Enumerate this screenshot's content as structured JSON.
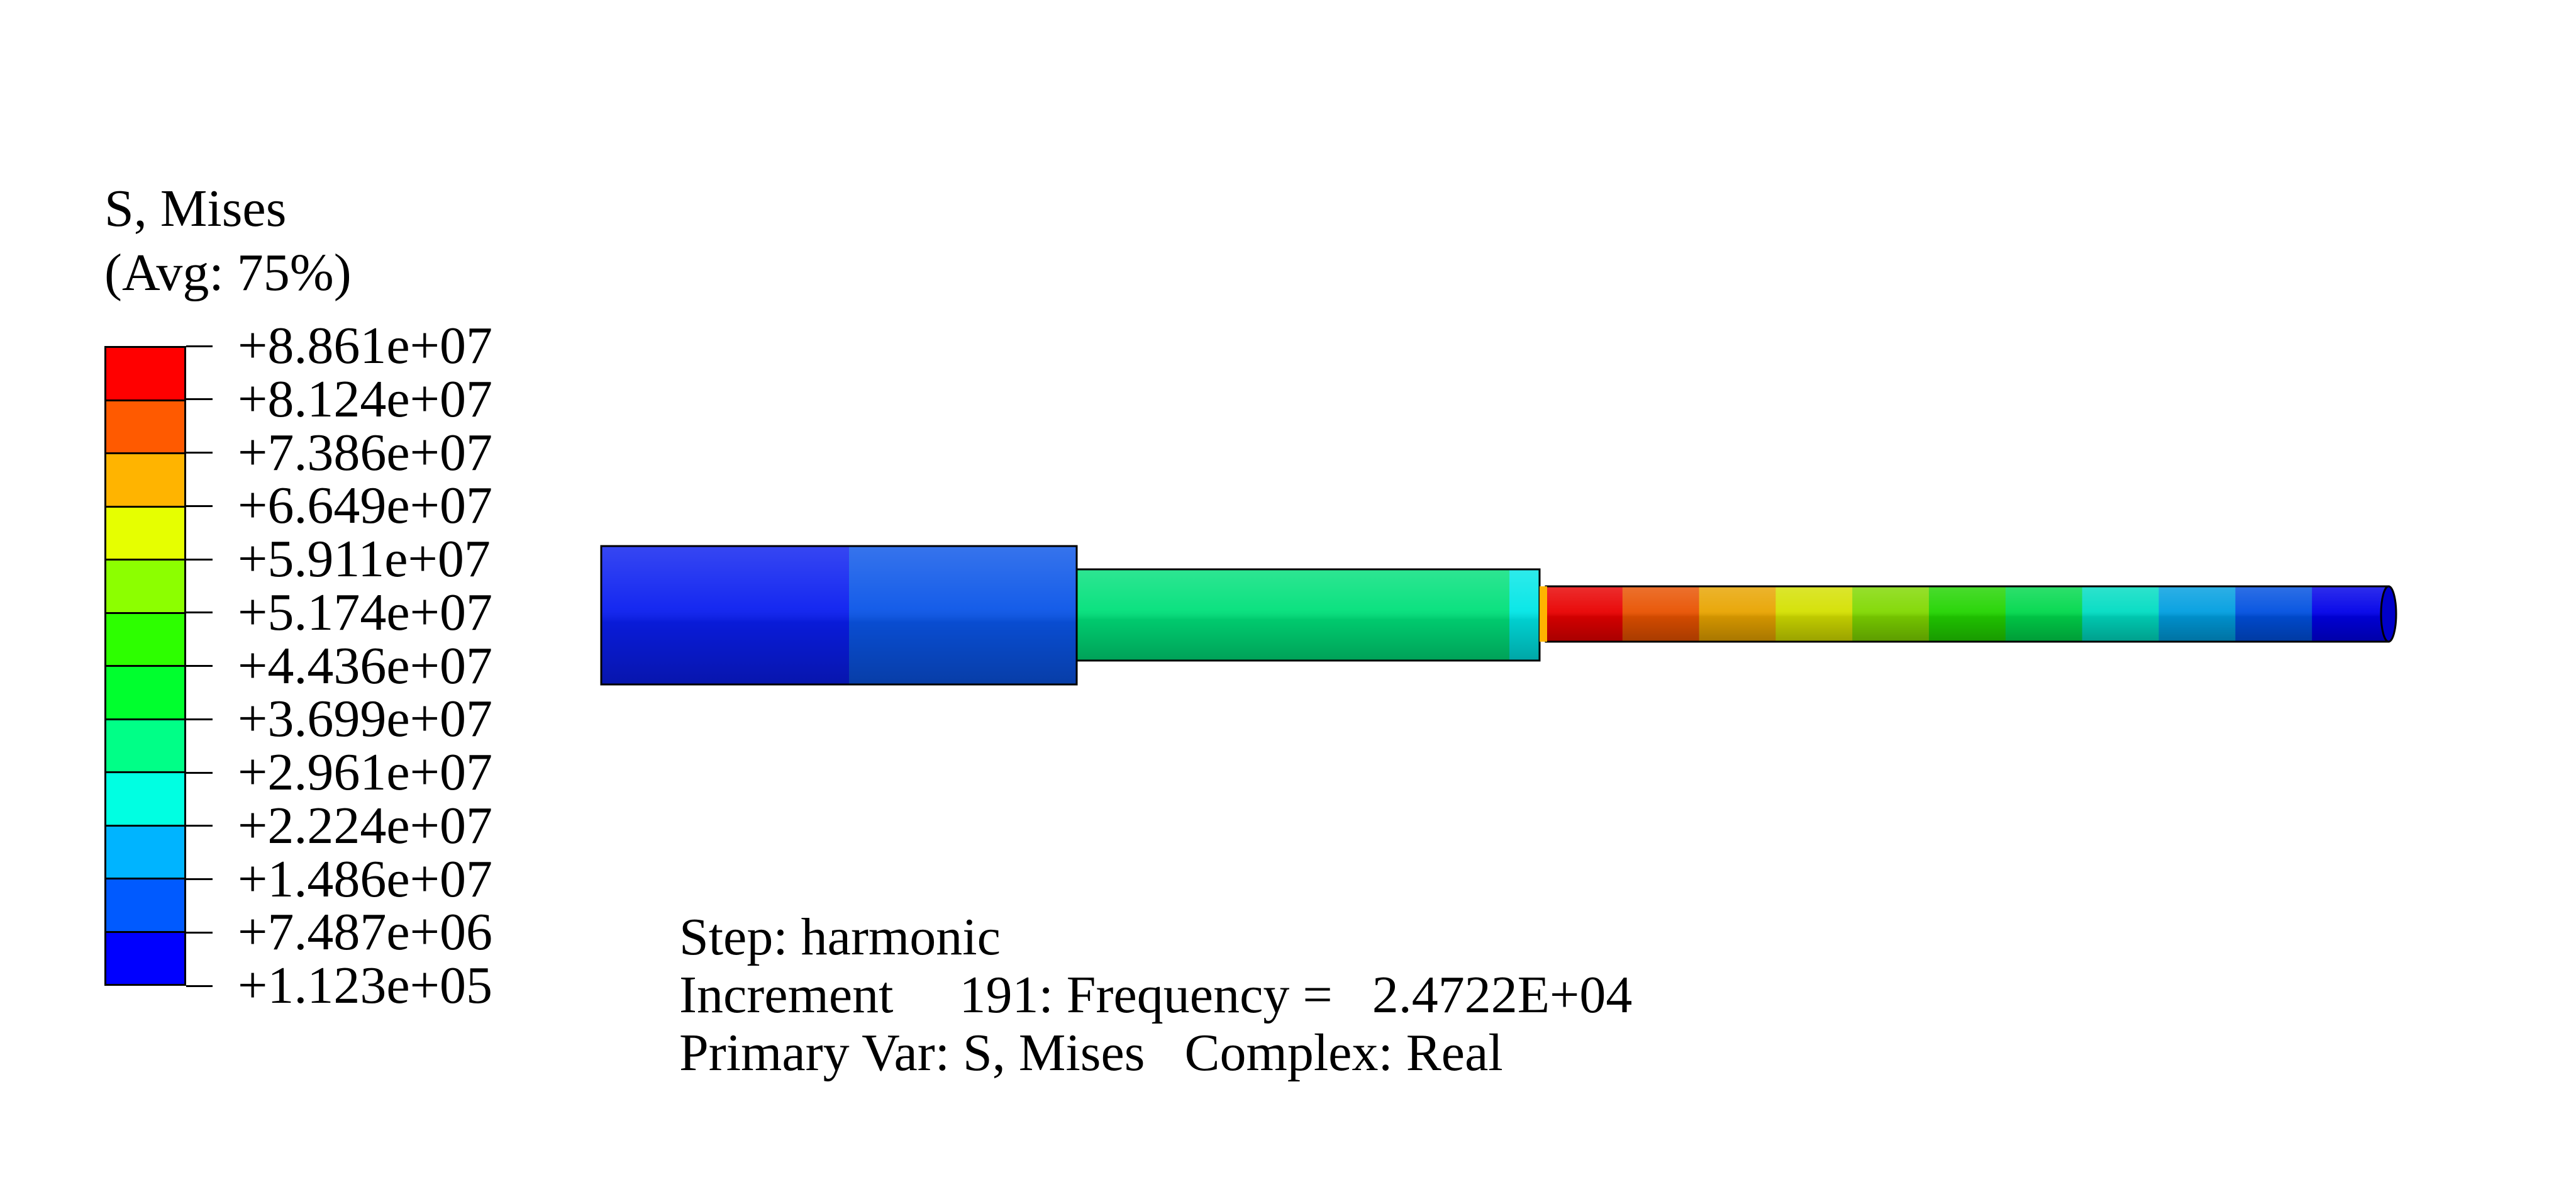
{
  "legend": {
    "title": "S, Mises",
    "subtitle": "(Avg: 75%)",
    "values": [
      "+8.861e+07",
      "+8.124e+07",
      "+7.386e+07",
      "+6.649e+07",
      "+5.911e+07",
      "+5.174e+07",
      "+4.436e+07",
      "+3.699e+07",
      "+2.961e+07",
      "+2.224e+07",
      "+1.486e+07",
      "+7.487e+06",
      "+1.123e+05"
    ],
    "band_colors": [
      "#ff0000",
      "#ff5a00",
      "#ffb400",
      "#e6ff00",
      "#8cff00",
      "#2dff00",
      "#00ff2e",
      "#00ff87",
      "#00ffe2",
      "#00b4ff",
      "#005aff",
      "#0000ff"
    ]
  },
  "info": {
    "step": "Step: harmonic",
    "increment": "Increment     191: Frequency =   2.4722E+04",
    "primary": "Primary Var: S, Mises   Complex: Real"
  },
  "model": {
    "segments_large": [
      "#0a1ef0",
      "#0a55e8"
    ],
    "segments_mid": [
      "#00e07a"
    ],
    "segments_small": [
      "#e80000",
      "#e85200",
      "#e8a400",
      "#d4e000",
      "#80d800",
      "#22d400",
      "#00d84c",
      "#00dcc2",
      "#009ee0",
      "#0050e0",
      "#0000e8"
    ]
  }
}
